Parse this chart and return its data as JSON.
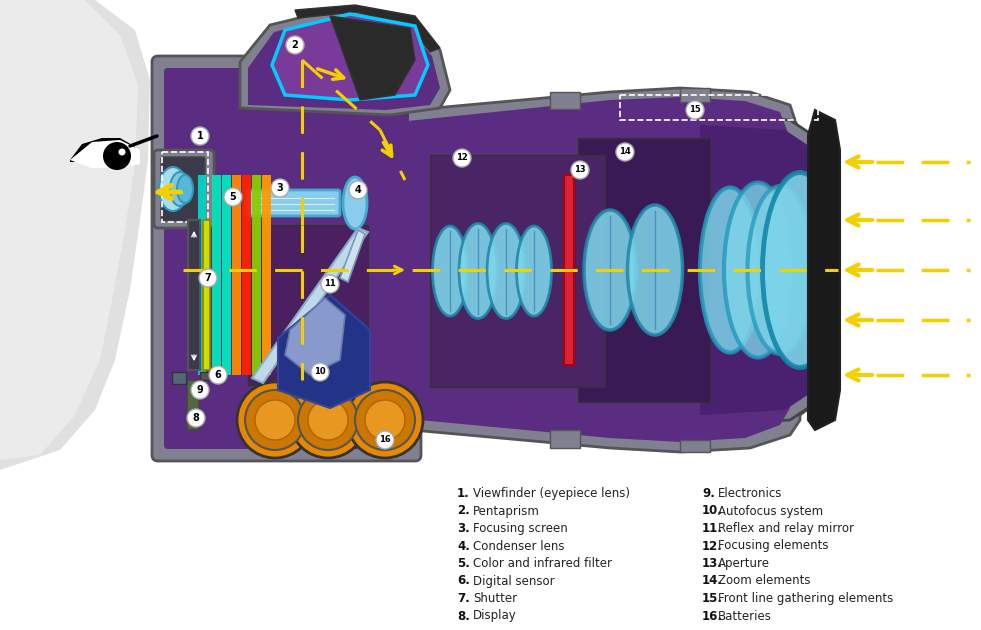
{
  "background_color": "#ffffff",
  "legend_items_col1": [
    {
      "num": "1",
      "text": "Viewfinder (eyepiece lens)"
    },
    {
      "num": "2",
      "text": "Pentaprism"
    },
    {
      "num": "3",
      "text": "Focusing screen"
    },
    {
      "num": "4",
      "text": "Condenser lens"
    },
    {
      "num": "5",
      "text": "Color and infrared filter"
    },
    {
      "num": "6",
      "text": "Digital sensor"
    },
    {
      "num": "7",
      "text": "Shutter"
    },
    {
      "num": "8",
      "text": "Display"
    }
  ],
  "legend_items_col2": [
    {
      "num": "9",
      "text": "Electronics"
    },
    {
      "num": "10",
      "text": "Autofocus system"
    },
    {
      "num": "11",
      "text": "Reflex and relay mirror"
    },
    {
      "num": "12",
      "text": "Focusing elements"
    },
    {
      "num": "13",
      "text": "Aperture"
    },
    {
      "num": "14",
      "text": "Zoom elements"
    },
    {
      "num": "15",
      "text": "Front line gathering elements"
    },
    {
      "num": "16",
      "text": "Batteries"
    }
  ],
  "camera_purple": "#5a2d82",
  "camera_shell": "#808090",
  "lens_cyan": "#7dd4e8",
  "arrow_yellow": "#f5d000",
  "face_light": "#e8e8e8",
  "face_grad_dark": "#c0c0c0"
}
